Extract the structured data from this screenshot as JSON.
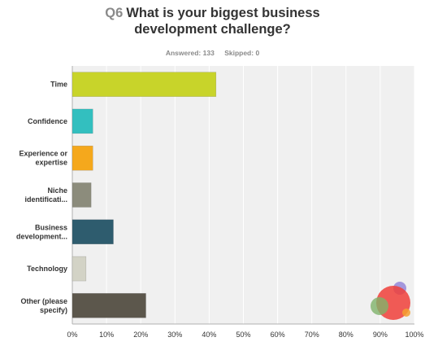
{
  "question": {
    "number": "Q6",
    "title_line1": "What is your biggest business",
    "title_line2": "development challenge?"
  },
  "stats": {
    "answered": "Answered: 133",
    "skipped": "Skipped: 0"
  },
  "colors": {
    "plot_bg": "#f0f0f0",
    "gridline": "#ffffff",
    "axis": "#b0b0b0",
    "bar_border": "#555555"
  },
  "chart_data": {
    "type": "bar",
    "orientation": "horizontal",
    "categories": [
      [
        "Time"
      ],
      [
        "Confidence"
      ],
      [
        "Experience or",
        "expertise"
      ],
      [
        "Niche",
        "identificati..."
      ],
      [
        "Business",
        "development..."
      ],
      [
        "Technology"
      ],
      [
        "Other (please",
        "specify)"
      ]
    ],
    "values": [
      42,
      6,
      6,
      5.5,
      12,
      4,
      21.5
    ],
    "bar_colors": [
      "#c8d42a",
      "#33bfbf",
      "#f5a81c",
      "#8c8c7c",
      "#2e5c6e",
      "#d3d3c6",
      "#5c574c"
    ],
    "xlim": [
      0,
      100
    ],
    "x_ticks": [
      "0%",
      "10%",
      "20%",
      "30%",
      "40%",
      "50%",
      "60%",
      "70%",
      "80%",
      "90%",
      "100%"
    ],
    "grid": true
  }
}
